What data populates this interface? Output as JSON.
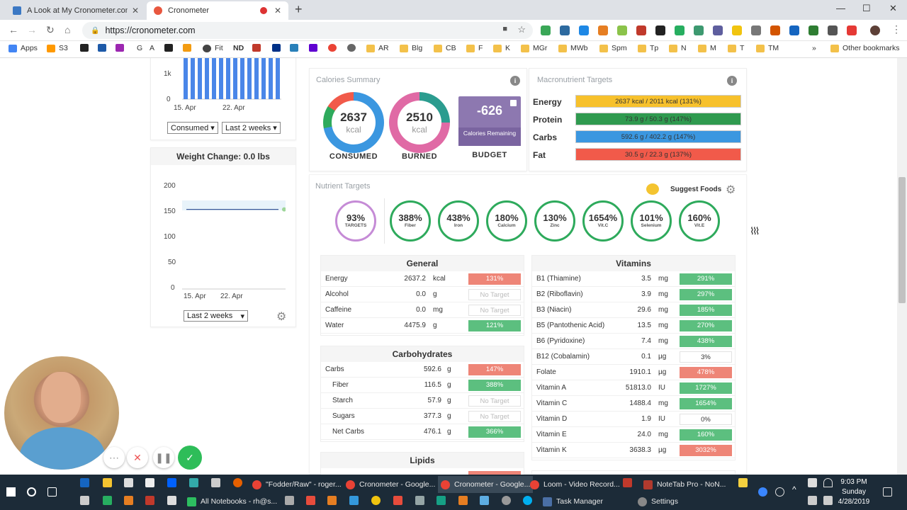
{
  "browser": {
    "tabs": [
      {
        "title": "A Look at My Cronometer.com Ac",
        "active": false
      },
      {
        "title": "Cronometer",
        "active": true
      }
    ],
    "url": "https://cronometer.com",
    "new_tab": "+",
    "bookmarks": [
      "Apps",
      "S3",
      "G",
      "A",
      "Fit",
      "ND",
      "AR",
      "Blg",
      "CB",
      "F",
      "K",
      "MGr",
      "MWb",
      "Spm",
      "Tp",
      "N",
      "M",
      "T",
      "TM"
    ],
    "bookmarks_overflow": "»",
    "other_bookmarks": "Other bookmarks"
  },
  "sidebar": {
    "top_chart": {
      "y_ticks": [
        "1k",
        "0"
      ],
      "x_ticks": [
        "15. Apr",
        "22. Apr"
      ],
      "selects": [
        "Consumed ▾",
        "Last 2 weeks ▾"
      ]
    },
    "weight": {
      "title": "Weight Change: 0.0 lbs",
      "y_ticks": [
        "200",
        "150",
        "100",
        "50",
        "0"
      ],
      "x_ticks": [
        "15. Apr",
        "22. Apr"
      ],
      "range_select": "Last 2 weeks",
      "select_arrow": "▾"
    },
    "chart_data": {
      "type": "line",
      "title": "Weight Change: 0.0 lbs",
      "x": [
        "15. Apr",
        "22. Apr"
      ],
      "ylim": [
        0,
        200
      ],
      "series": [
        {
          "name": "Weight",
          "values": [
            155,
            155
          ]
        }
      ]
    }
  },
  "calories": {
    "title": "Calories Summary",
    "consumed": {
      "value": "2637",
      "unit": "kcal",
      "label": "CONSUMED"
    },
    "burned": {
      "value": "2510",
      "unit": "kcal",
      "label": "BURNED"
    },
    "budget": {
      "value": "-626",
      "sub": "Calories Remaining",
      "label": "BUDGET"
    }
  },
  "macros": {
    "title": "Macronutrient Targets",
    "rows": [
      {
        "label": "Energy",
        "text": "2637 kcal / 2011 kcal (131%)",
        "color": "#f7c12c"
      },
      {
        "label": "Protein",
        "text": "73.9 g / 50.3 g (147%)",
        "color": "#2f9a4f"
      },
      {
        "label": "Carbs",
        "text": "592.6 g / 402.2 g (147%)",
        "color": "#3b97e0"
      },
      {
        "label": "Fat",
        "text": "30.5 g / 22.3 g (137%)",
        "color": "#f15a4a"
      }
    ]
  },
  "nutrient_targets": {
    "title": "Nutrient Targets",
    "suggest_label": "Suggest Foods",
    "rings": [
      {
        "pct": "93%",
        "label": "TARGETS"
      },
      {
        "pct": "388%",
        "label": "Fiber"
      },
      {
        "pct": "438%",
        "label": "Iron"
      },
      {
        "pct": "180%",
        "label": "Calcium"
      },
      {
        "pct": "130%",
        "label": "Zinc"
      },
      {
        "pct": "1654%",
        "label": "Vit.C"
      },
      {
        "pct": "101%",
        "label": "Selenium"
      },
      {
        "pct": "160%",
        "label": "Vit.E"
      }
    ]
  },
  "general": {
    "title": "General",
    "rows": [
      {
        "name": "Energy",
        "value": "2637.2",
        "unit": "kcal",
        "pct": "131%",
        "style": "red"
      },
      {
        "name": "Alcohol",
        "value": "0.0",
        "unit": "g",
        "pct": "No Target",
        "style": "none"
      },
      {
        "name": "Caffeine",
        "value": "0.0",
        "unit": "mg",
        "pct": "No Target",
        "style": "none"
      },
      {
        "name": "Water",
        "value": "4475.9",
        "unit": "g",
        "pct": "121%",
        "style": "green"
      }
    ]
  },
  "carbs": {
    "title": "Carbohydrates",
    "rows": [
      {
        "name": "Carbs",
        "value": "592.6",
        "unit": "g",
        "pct": "147%",
        "style": "red"
      },
      {
        "name": "Fiber",
        "value": "116.5",
        "unit": "g",
        "pct": "388%",
        "style": "green"
      },
      {
        "name": "Starch",
        "value": "57.9",
        "unit": "g",
        "pct": "No Target",
        "style": "none"
      },
      {
        "name": "Sugars",
        "value": "377.3",
        "unit": "g",
        "pct": "No Target",
        "style": "none"
      },
      {
        "name": "Net Carbs",
        "value": "476.1",
        "unit": "g",
        "pct": "366%",
        "style": "green"
      }
    ]
  },
  "lipids": {
    "title": "Lipids"
  },
  "vitamins": {
    "title": "Vitamins",
    "rows": [
      {
        "name": "B1 (Thiamine)",
        "value": "3.5",
        "unit": "mg",
        "pct": "291%",
        "style": "green"
      },
      {
        "name": "B2 (Riboflavin)",
        "value": "3.9",
        "unit": "mg",
        "pct": "297%",
        "style": "green"
      },
      {
        "name": "B3 (Niacin)",
        "value": "29.6",
        "unit": "mg",
        "pct": "185%",
        "style": "green"
      },
      {
        "name": "B5 (Pantothenic Acid)",
        "value": "13.5",
        "unit": "mg",
        "pct": "270%",
        "style": "green"
      },
      {
        "name": "B6 (Pyridoxine)",
        "value": "7.4",
        "unit": "mg",
        "pct": "438%",
        "style": "green"
      },
      {
        "name": "B12 (Cobalamin)",
        "value": "0.1",
        "unit": "µg",
        "pct": "3%",
        "style": "white"
      },
      {
        "name": "Folate",
        "value": "1910.1",
        "unit": "µg",
        "pct": "478%",
        "style": "red"
      },
      {
        "name": "Vitamin A",
        "value": "51813.0",
        "unit": "IU",
        "pct": "1727%",
        "style": "green"
      },
      {
        "name": "Vitamin C",
        "value": "1488.4",
        "unit": "mg",
        "pct": "1654%",
        "style": "green"
      },
      {
        "name": "Vitamin D",
        "value": "1.9",
        "unit": "IU",
        "pct": "0%",
        "style": "white"
      },
      {
        "name": "Vitamin E",
        "value": "24.0",
        "unit": "mg",
        "pct": "160%",
        "style": "green"
      },
      {
        "name": "Vitamin K",
        "value": "3638.3",
        "unit": "µg",
        "pct": "3032%",
        "style": "red"
      }
    ]
  },
  "taskbar": {
    "row1": [
      "\"Fodder/Raw\" - roger...",
      "Cronometer - Google...",
      "Cronometer - Google...",
      "Loom - Video Record...",
      "NoteTab Pro - NoN..."
    ],
    "row2": [
      "All Notebooks - rh@s...",
      "Task Manager",
      "Settings"
    ],
    "time": "9:03 PM",
    "day": "Sunday",
    "date": "4/28/2019"
  }
}
